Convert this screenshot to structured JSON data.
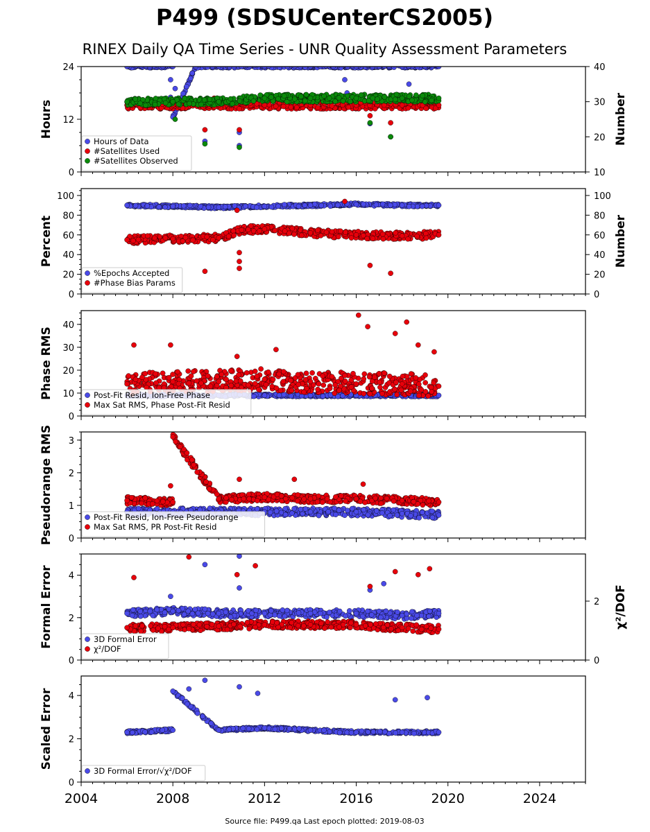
{
  "title": "P499 (SDSUCenterCS2005)",
  "subtitle": "RINEX Daily QA Time Series - UNR Quality Assessment Parameters",
  "footer": "Source file: P499.qa Last epoch plotted: 2019-08-03",
  "colors": {
    "blue": "#4a4ae8",
    "red": "#e8000b",
    "green": "#0a8a0a",
    "navy": "#1a1a5a"
  },
  "x_axis": {
    "range": [
      2004,
      2026
    ],
    "ticks": [
      "2004",
      "2008",
      "2012",
      "2016",
      "2020",
      "2024"
    ]
  },
  "chart_data": [
    {
      "type": "scatter",
      "ylabel": "Hours",
      "y2label": "Number",
      "ylim": [
        0,
        24
      ],
      "y2lim": [
        10,
        40
      ],
      "yticks": [
        "0",
        "12",
        "24"
      ],
      "y2ticks": [
        "10",
        "20",
        "30",
        "40"
      ],
      "legend": "bottom-left",
      "series": [
        {
          "name": "Hours of Data",
          "axis": "left",
          "points": [
            [
              2006.0,
              24
            ],
            [
              2007.0,
              24
            ],
            [
              2008.0,
              24
            ],
            [
              2009.0,
              24
            ],
            [
              2010.0,
              24
            ],
            [
              2011.0,
              24
            ],
            [
              2012.0,
              24
            ],
            [
              2013.0,
              24
            ],
            [
              2014.0,
              24
            ],
            [
              2015.0,
              24
            ],
            [
              2016.0,
              24
            ],
            [
              2017.0,
              24
            ],
            [
              2018.0,
              24
            ],
            [
              2019.0,
              24
            ],
            [
              2019.6,
              24
            ],
            [
              2007.9,
              21
            ],
            [
              2008.1,
              19
            ],
            [
              2007.9,
              17
            ],
            [
              2008.0,
              12.5
            ],
            [
              2009.4,
              7
            ],
            [
              2010.9,
              9
            ],
            [
              2010.9,
              6
            ],
            [
              2015.5,
              21
            ],
            [
              2015.6,
              18
            ],
            [
              2016.6,
              11
            ],
            [
              2017.5,
              8
            ],
            [
              2018.3,
              20
            ]
          ]
        },
        {
          "name": "#Satellites Used",
          "axis": "right",
          "points": [
            [
              2006.0,
              29
            ],
            [
              2008.0,
              29
            ],
            [
              2010.0,
              29
            ],
            [
              2012.0,
              29
            ],
            [
              2014.0,
              29
            ],
            [
              2016.0,
              29
            ],
            [
              2018.0,
              29
            ],
            [
              2019.6,
              29
            ],
            [
              2009.4,
              22
            ],
            [
              2009.8,
              31
            ],
            [
              2010.9,
              22
            ],
            [
              2010.9,
              28
            ],
            [
              2016.6,
              26
            ],
            [
              2017.5,
              24
            ]
          ]
        },
        {
          "name": "#Satellites Observed",
          "axis": "right",
          "points": [
            [
              2006.0,
              30
            ],
            [
              2008.0,
              30
            ],
            [
              2010.0,
              30
            ],
            [
              2012.0,
              31
            ],
            [
              2014.0,
              31
            ],
            [
              2016.0,
              31
            ],
            [
              2018.0,
              31
            ],
            [
              2019.6,
              31
            ],
            [
              2009.4,
              18
            ],
            [
              2010.9,
              17
            ],
            [
              2016.6,
              24
            ],
            [
              2017.5,
              20
            ],
            [
              2008.1,
              25
            ]
          ]
        }
      ]
    },
    {
      "type": "scatter",
      "ylabel": "Percent",
      "y2label": "Number",
      "ylim": [
        0,
        107
      ],
      "y2lim": [
        0,
        107
      ],
      "yticks": [
        "0",
        "20",
        "40",
        "60",
        "80",
        "100"
      ],
      "y2ticks": [
        "0",
        "20",
        "40",
        "60",
        "80",
        "100"
      ],
      "legend": "bottom-left",
      "series": [
        {
          "name": "%Epochs Accepted",
          "axis": "left",
          "points": [
            [
              2006.0,
              90
            ],
            [
              2008.0,
              89
            ],
            [
              2010.0,
              88
            ],
            [
              2012.0,
              89
            ],
            [
              2014.0,
              90
            ],
            [
              2016.0,
              91
            ],
            [
              2018.0,
              90
            ],
            [
              2019.6,
              90
            ]
          ]
        },
        {
          "name": "#Phase Bias Params",
          "axis": "right",
          "points": [
            [
              2006.0,
              55
            ],
            [
              2008.0,
              56
            ],
            [
              2010.0,
              57
            ],
            [
              2011.0,
              65
            ],
            [
              2012.0,
              66
            ],
            [
              2014.0,
              62
            ],
            [
              2016.0,
              60
            ],
            [
              2018.0,
              59
            ],
            [
              2019.6,
              60
            ],
            [
              2009.4,
              23
            ],
            [
              2010.9,
              26
            ],
            [
              2010.9,
              33
            ],
            [
              2010.9,
              42
            ],
            [
              2015.5,
              94
            ],
            [
              2016.6,
              29
            ],
            [
              2017.5,
              21
            ],
            [
              2010.8,
              85
            ]
          ]
        }
      ]
    },
    {
      "type": "scatter",
      "ylabel": "Phase RMS",
      "ylim": [
        0,
        46
      ],
      "yticks": [
        "0",
        "10",
        "20",
        "30",
        "40"
      ],
      "legend": "bottom-left",
      "series": [
        {
          "name": "Post-Fit Resid, Ion-Free Phase",
          "points": [
            [
              2006.0,
              9
            ],
            [
              2008.0,
              9
            ],
            [
              2010.0,
              9
            ],
            [
              2012.0,
              9
            ],
            [
              2014.0,
              9
            ],
            [
              2016.0,
              9
            ],
            [
              2018.0,
              9
            ],
            [
              2019.6,
              9
            ]
          ]
        },
        {
          "name": "Max Sat RMS, Phase Post-Fit Resid",
          "points": [
            [
              2006.0,
              14
            ],
            [
              2008.0,
              15
            ],
            [
              2010.0,
              15
            ],
            [
              2012.0,
              16
            ],
            [
              2014.0,
              15
            ],
            [
              2016.0,
              14
            ],
            [
              2018.0,
              14
            ],
            [
              2019.6,
              13
            ],
            [
              2006.3,
              31
            ],
            [
              2007.9,
              31
            ],
            [
              2010.8,
              26
            ],
            [
              2012.5,
              29
            ],
            [
              2016.1,
              44
            ],
            [
              2016.5,
              39
            ],
            [
              2017.7,
              36
            ],
            [
              2018.2,
              41
            ],
            [
              2018.7,
              31
            ],
            [
              2019.4,
              28
            ]
          ]
        }
      ]
    },
    {
      "type": "scatter",
      "ylabel": "Pseudorange RMS",
      "ylim": [
        0,
        3.25
      ],
      "yticks": [
        "0",
        "1",
        "2",
        "3"
      ],
      "legend": "bottom-left",
      "series": [
        {
          "name": "Post-Fit Resid, Ion-Free Pseudorange",
          "points": [
            [
              2006.0,
              0.8
            ],
            [
              2008.0,
              0.8
            ],
            [
              2010.0,
              0.8
            ],
            [
              2012.0,
              0.8
            ],
            [
              2014.0,
              0.8
            ],
            [
              2016.0,
              0.8
            ],
            [
              2018.0,
              0.75
            ],
            [
              2019.6,
              0.7
            ]
          ]
        },
        {
          "name": "Max Sat RMS, PR Post-Fit Resid",
          "points": [
            [
              2006.0,
              1.15
            ],
            [
              2008.0,
              1.1
            ],
            [
              2010.0,
              1.2
            ],
            [
              2012.0,
              1.25
            ],
            [
              2014.0,
              1.2
            ],
            [
              2016.0,
              1.2
            ],
            [
              2018.0,
              1.15
            ],
            [
              2019.6,
              1.1
            ],
            [
              2008.0,
              3.1
            ],
            [
              2010.9,
              1.8
            ],
            [
              2013.3,
              1.8
            ],
            [
              2007.9,
              1.6
            ],
            [
              2016.3,
              1.65
            ]
          ]
        }
      ]
    },
    {
      "type": "scatter",
      "ylabel": "Formal Error",
      "y2label": "χ²/DOF",
      "ylim": [
        0,
        5
      ],
      "y2lim": [
        0,
        3.6
      ],
      "yticks": [
        "0",
        "2",
        "4"
      ],
      "y2ticks": [
        "0",
        "2"
      ],
      "legend": "bottom-left",
      "series": [
        {
          "name": "3D Formal Error",
          "axis": "left",
          "points": [
            [
              2006.0,
              2.2
            ],
            [
              2008.0,
              2.3
            ],
            [
              2010.0,
              2.2
            ],
            [
              2012.0,
              2.2
            ],
            [
              2014.0,
              2.2
            ],
            [
              2016.0,
              2.2
            ],
            [
              2018.0,
              2.1
            ],
            [
              2019.6,
              2.2
            ],
            [
              2009.4,
              4.5
            ],
            [
              2010.9,
              4.9
            ],
            [
              2010.9,
              3.4
            ],
            [
              2017.2,
              3.6
            ],
            [
              2016.6,
              3.3
            ],
            [
              2007.9,
              3
            ]
          ]
        },
        {
          "name": "χ²/DOF",
          "axis": "right",
          "points": [
            [
              2006.0,
              1.1
            ],
            [
              2008.0,
              1.1
            ],
            [
              2010.0,
              1.15
            ],
            [
              2012.0,
              1.2
            ],
            [
              2014.0,
              1.2
            ],
            [
              2016.0,
              1.2
            ],
            [
              2018.0,
              1.1
            ],
            [
              2019.6,
              1.05
            ],
            [
              2006.3,
              2.8
            ],
            [
              2008.7,
              3.5
            ],
            [
              2010.8,
              2.9
            ],
            [
              2011.6,
              3.2
            ],
            [
              2016.6,
              2.5
            ],
            [
              2017.7,
              3
            ],
            [
              2018.7,
              2.9
            ],
            [
              2019.2,
              3.1
            ]
          ]
        }
      ]
    },
    {
      "type": "scatter",
      "ylabel": "Scaled Error",
      "ylim": [
        0,
        4.9
      ],
      "yticks": [
        "0",
        "2",
        "4"
      ],
      "legend": "bottom-left",
      "series": [
        {
          "name": "3D Formal Error/√χ²/DOF",
          "points": [
            [
              2006.0,
              2.3
            ],
            [
              2008.0,
              2.4
            ],
            [
              2010.0,
              2.4
            ],
            [
              2012.0,
              2.5
            ],
            [
              2014.0,
              2.4
            ],
            [
              2016.0,
              2.3
            ],
            [
              2018.0,
              2.3
            ],
            [
              2019.6,
              2.3
            ],
            [
              2008.0,
              4.2
            ],
            [
              2008.7,
              4.3
            ],
            [
              2009.4,
              4.7
            ],
            [
              2010.9,
              4.4
            ],
            [
              2011.7,
              4.1
            ],
            [
              2017.7,
              3.8
            ],
            [
              2019.1,
              3.9
            ]
          ]
        }
      ]
    }
  ]
}
